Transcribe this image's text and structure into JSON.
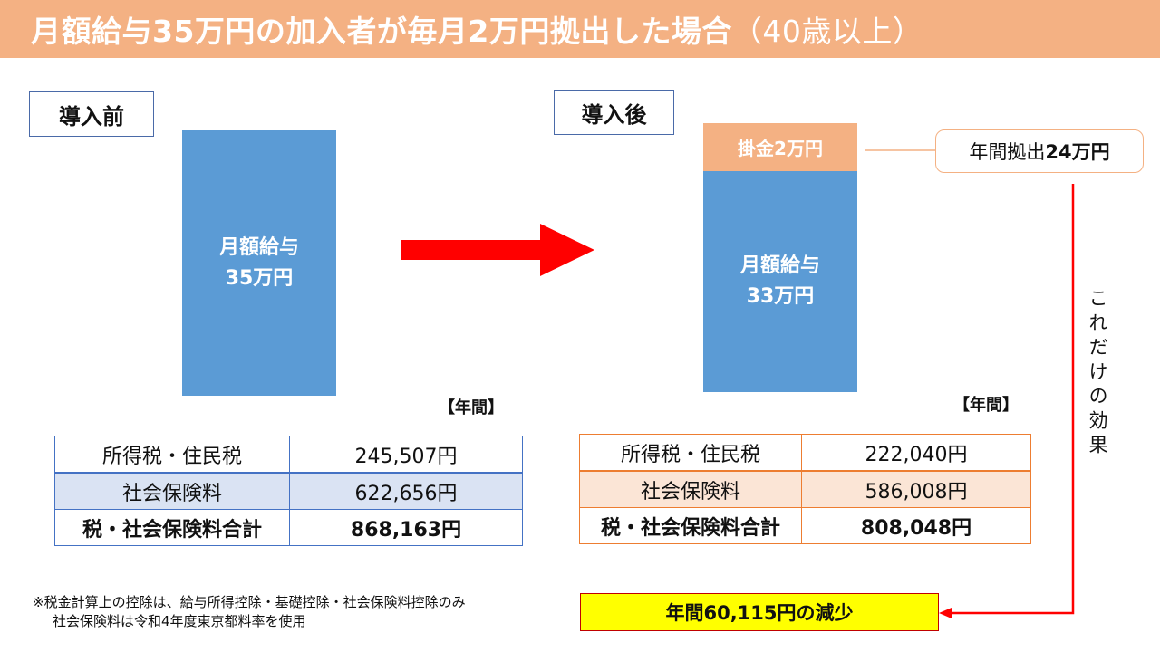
{
  "title": {
    "main": "月額給与35万円の加入者が毎月2万円拠出した場合",
    "suffix": "（40歳以上）"
  },
  "before": {
    "label": "導入前",
    "bar_line1": "月額給与",
    "bar_line2": "35万円",
    "annual_label": "【年間】",
    "rows": [
      {
        "name": "所得税・住民税",
        "value": "245,507円"
      },
      {
        "name": "社会保険料",
        "value": "622,656円"
      },
      {
        "name": "税・社会保険料合計",
        "value": "868,163円"
      }
    ]
  },
  "after": {
    "label": "導入後",
    "contribution": "掛金2万円",
    "bar_line1": "月額給与",
    "bar_line2": "33万円",
    "annual_label": "【年間】",
    "rows": [
      {
        "name": "所得税・住民税",
        "value": "222,040円"
      },
      {
        "name": "社会保険料",
        "value": "586,008円"
      },
      {
        "name": "税・社会保険料合計",
        "value": "808,048円"
      }
    ]
  },
  "callout": {
    "prefix": "年間拠出",
    "amount": "24万円"
  },
  "effect_text": "これだけの効果",
  "result": "年間60,115円の減少",
  "notes": [
    "※税金計算上の控除は、給与所得控除・基礎控除・社会保険料控除のみ",
    "社会保険料は令和4年度東京都料率を使用"
  ],
  "colors": {
    "title_bar": "#f4b183",
    "bar_blue": "#5b9bd5",
    "contribution": "#f4b183",
    "arrow_red": "#ff0000",
    "result_bg": "#ffff00"
  }
}
